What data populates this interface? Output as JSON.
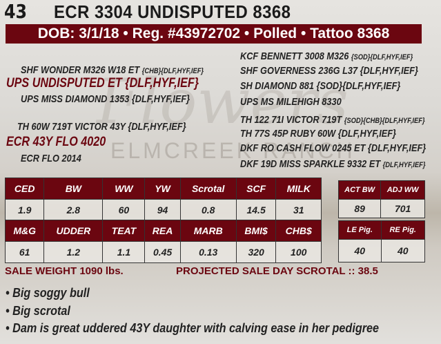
{
  "lot": "43",
  "title": "ECR 3304 UNDISPUTED 8368",
  "banner": "DOB: 3/1/18 • Reg. #43972702 • Polled • Tattoo 8368",
  "watermark": {
    "script": "Flowers",
    "text": "ELMCREEK RANCH"
  },
  "pedigree": {
    "sire_sire": "SHF WONDER M326 W18 ET",
    "sire_sire_tag": "{CHB}{DLF,HYF,IEF}",
    "sire": "UPS UNDISPUTED ET {DLF,HYF,IEF}",
    "sire_dam": "UPS MISS DIAMOND 1353 {DLF,HYF,IEF}",
    "dam_sire": "TH 60W 719T VICTOR 43Y {DLF,HYF,IEF}",
    "dam": "ECR 43Y FLO 4020",
    "dam_dam": "ECR FLO 2014",
    "right": [
      {
        "name": "KCF BENNETT 3008 M326 ",
        "tag": "{SOD}{DLF,HYF,IEF}"
      },
      {
        "name": "SHF GOVERNESS 236G L37 {DLF,HYF,IEF}",
        "tag": ""
      },
      {
        "name": "SH DIAMOND 881 {SOD}{DLF,HYF,IEF}",
        "tag": ""
      },
      {
        "name": "UPS MS MILEHIGH 8330",
        "tag": ""
      },
      {
        "name": "TH 122 71I VICTOR 719T ",
        "tag": "{SOD}{CHB}{DLF,HYF,IEF}"
      },
      {
        "name": "TH 77S 45P RUBY 60W {DLF,HYF,IEF}",
        "tag": ""
      },
      {
        "name": "DKF RO CASH FLOW 0245 ET {DLF,HYF,IEF}",
        "tag": ""
      },
      {
        "name": "DKF 19D MISS SPARKLE 9332 ET ",
        "tag": "{DLF,HYF,IEF}"
      }
    ]
  },
  "epd": {
    "row1_headers": [
      "CED",
      "BW",
      "WW",
      "YW",
      "Scrotal",
      "SCF",
      "MILK"
    ],
    "row1_values": [
      "1.9",
      "2.8",
      "60",
      "94",
      "0.8",
      "14.5",
      "31"
    ],
    "row2_headers": [
      "M&G",
      "UDDER",
      "TEAT",
      "REA",
      "MARB",
      "BMI$",
      "CHB$"
    ],
    "row2_values": [
      "61",
      "1.2",
      "1.1",
      "0.45",
      "0.13",
      "320",
      "100"
    ]
  },
  "weights": {
    "headers": [
      "ACT BW",
      "ADJ WW"
    ],
    "values": [
      "89",
      "701"
    ]
  },
  "pig": {
    "headers": [
      "LE Pig.",
      "RE Pig."
    ],
    "values": [
      "40",
      "40"
    ]
  },
  "sale_weight": "SALE WEIGHT 1090 lbs.",
  "projected_scrotal": "PROJECTED SALE DAY SCROTAL :: 38.5",
  "bullets": [
    "• Big soggy bull",
    "• Big scrotal",
    "• Dam is great uddered 43Y daughter with calving ease in her pedigree"
  ]
}
